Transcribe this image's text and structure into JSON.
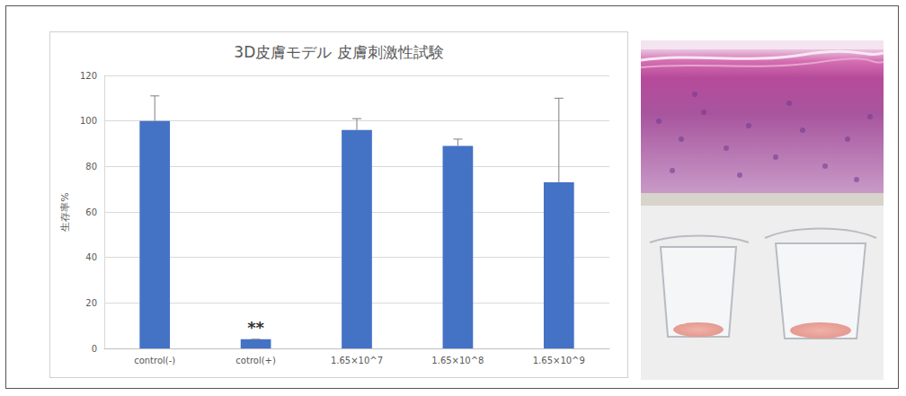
{
  "chart_data": {
    "type": "bar",
    "title": "3D皮膚モデル 皮膚刺激性試験",
    "y_label": "生存率%",
    "categories": [
      "control(-)",
      "cotrol(+)",
      "1.65×10^7",
      "1.65×10^8",
      "1.65×10^9"
    ],
    "values": [
      100,
      4,
      96,
      89,
      73
    ],
    "errors": [
      11,
      0,
      5,
      3,
      37
    ],
    "annotations": [
      {
        "category": "cotrol(+)",
        "text": "**"
      }
    ],
    "color": "#4472c4",
    "ylim": [
      0,
      120
    ],
    "yticks": [
      0,
      20,
      40,
      60,
      80,
      100,
      120
    ],
    "grid": true
  }
}
